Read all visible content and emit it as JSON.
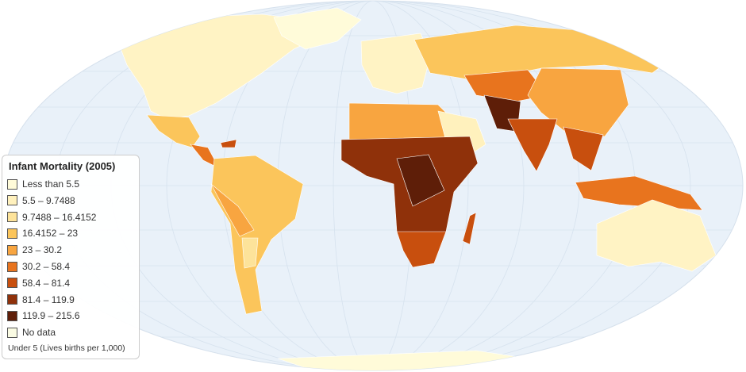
{
  "legend": {
    "title": "Infant Mortality (2005)",
    "items": [
      {
        "label": "Less than 5.5",
        "color": "#fffbd9"
      },
      {
        "label": "5.5 – 9.7488",
        "color": "#fff1bd"
      },
      {
        "label": "9.7488 – 16.4152",
        "color": "#fde39a"
      },
      {
        "label": "16.4152 – 23",
        "color": "#fbc55b"
      },
      {
        "label": "23 – 30.2",
        "color": "#f8a540"
      },
      {
        "label": "30.2 – 58.4",
        "color": "#e8741e"
      },
      {
        "label": "58.4 – 81.4",
        "color": "#c84f0e"
      },
      {
        "label": "81.4 – 119.9",
        "color": "#8f310a"
      },
      {
        "label": "119.9 – 215.6",
        "color": "#5e1e08"
      },
      {
        "label": "No data",
        "color": "#fafbe3"
      }
    ],
    "note": "Under 5 (Lives births per 1,000)"
  }
}
